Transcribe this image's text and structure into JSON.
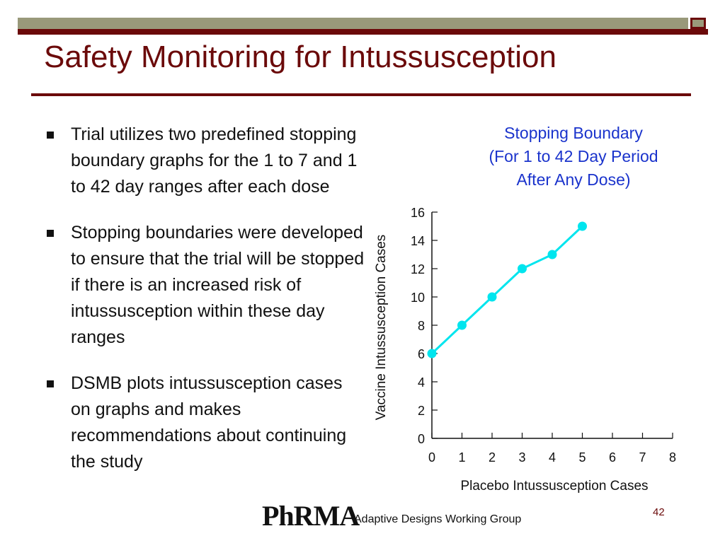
{
  "slide": {
    "title": "Safety Monitoring for Intussusception",
    "bullets": [
      "Trial utilizes two predefined stopping boundary graphs for the 1 to 7 and 1 to 42 day ranges after each dose",
      "Stopping boundaries were developed to ensure that the trial will be stopped if there is an increased risk of intussusception within these day ranges",
      "DSMB plots intussusception cases on graphs and makes recommendations about continuing the study"
    ],
    "footer_logo": "PhRMA",
    "footer_text": "Adaptive Designs Working Group",
    "page_number": "42"
  },
  "colors": {
    "brand_red": "#6b0a0a",
    "bar_gray": "#99997a",
    "chart_title": "#1a33cc",
    "series": "#00e5ee"
  },
  "chart_data": {
    "type": "line",
    "title_lines": [
      "Stopping Boundary",
      "(For 1 to 42 Day Period",
      "After Any Dose)"
    ],
    "xlabel": "Placebo Intussusception Cases",
    "ylabel": "Vaccine Intussusception Cases",
    "xlim": [
      0,
      8
    ],
    "ylim": [
      0,
      16
    ],
    "x_ticks": [
      0,
      1,
      2,
      3,
      4,
      5,
      6,
      7,
      8
    ],
    "y_ticks": [
      0,
      2,
      4,
      6,
      8,
      10,
      12,
      14,
      16
    ],
    "grid": false,
    "series": [
      {
        "x": [
          0,
          1,
          2,
          3,
          4,
          5
        ],
        "values": [
          6,
          8,
          10,
          12,
          13,
          15
        ]
      }
    ]
  }
}
